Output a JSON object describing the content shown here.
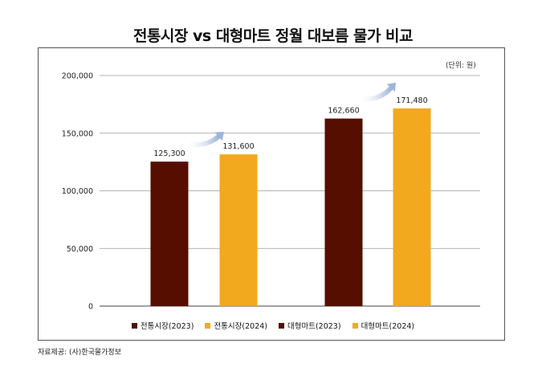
{
  "chart_data": {
    "type": "bar",
    "title": "전통시장 vs 대형마트 정월 대보름 물가 비교",
    "unit_note": "(단위: 원)",
    "source": "자료제공: (사)한국물가정보",
    "ylim": [
      0,
      200000
    ],
    "yticks": [
      0,
      50000,
      100000,
      150000,
      200000
    ],
    "ytick_labels": [
      "0",
      "50,000",
      "100,000",
      "150,000",
      "200,000"
    ],
    "grid": true,
    "legend_position": "bottom",
    "series": [
      {
        "name": "전통시장(2023)",
        "color": "#550E00",
        "value": 125300,
        "label": "125,300"
      },
      {
        "name": "전통시장(2024)",
        "color": "#F2A91D",
        "value": 131600,
        "label": "131,600"
      },
      {
        "name": "대형마트(2023)",
        "color": "#550E00",
        "value": 162660,
        "label": "162,660"
      },
      {
        "name": "대형마트(2024)",
        "color": "#F2A91D",
        "value": 171480,
        "label": "171,480"
      }
    ],
    "arrow_color": "#9DB5D8"
  }
}
